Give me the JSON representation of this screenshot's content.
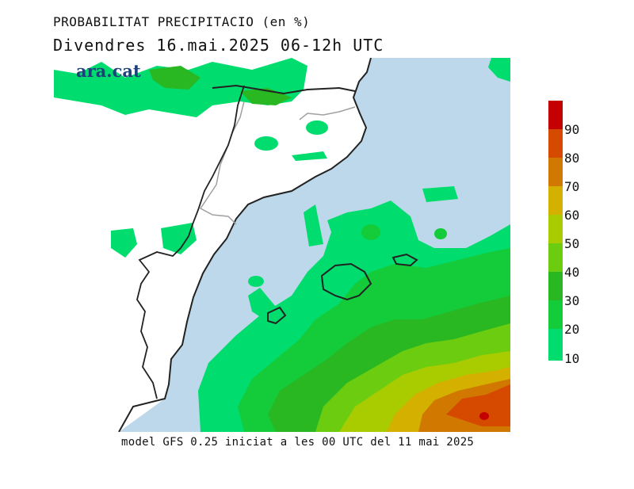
{
  "header": {
    "title": "PROBABILITAT PRECIPITACIO (en %)",
    "subtitle": "Divendres  16.mai.2025 06-12h UTC"
  },
  "brand": "ara.cat",
  "footer": "model GFS 0.25 iniciat a les 00 UTC del 11 mai 2025",
  "colorbar": {
    "labels": [
      "90",
      "80",
      "70",
      "60",
      "50",
      "40",
      "30",
      "20",
      "10"
    ],
    "colors": [
      "#c40000",
      "#d64a00",
      "#d17800",
      "#d4b000",
      "#a8cc00",
      "#6bcc10",
      "#2ab822",
      "#14cc3a",
      "#00dd6e"
    ]
  },
  "colors": {
    "sea": "#bcd8ea",
    "land": "#ffffff",
    "coast": "#222222",
    "border": "#a0a0a0"
  }
}
